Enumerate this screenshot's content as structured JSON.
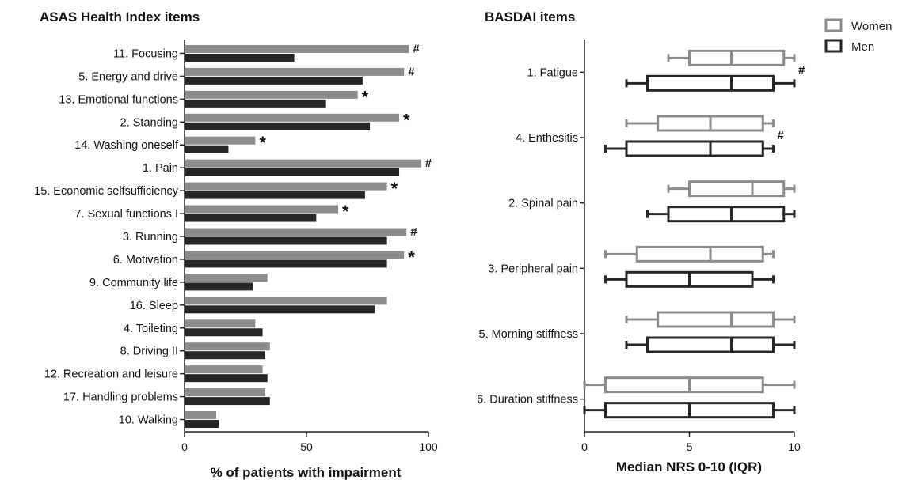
{
  "colors": {
    "women": "#8c8c8c",
    "men": "#262626",
    "axis": "#222222"
  },
  "chart_data": [
    {
      "type": "bar",
      "orientation": "horizontal",
      "title": "ASAS Health Index items",
      "xlabel": "% of patients with impairment",
      "xlim": [
        0,
        100
      ],
      "xticks": [
        "0",
        "50",
        "100"
      ],
      "categories": [
        "11. Focusing",
        "5. Energy and drive",
        "13. Emotional functions",
        "2. Standing",
        "14. Washing oneself",
        "1. Pain",
        "15. Economic selfsufficiency",
        "7. Sexual functions I",
        "3. Running",
        "6. Motivation",
        "9. Community life",
        "16. Sleep",
        "4. Toileting",
        "8. Driving II",
        "12. Recreation and leisure",
        "17. Handling problems",
        "10. Walking"
      ],
      "series": [
        {
          "name": "Women",
          "values": [
            92,
            90,
            71,
            88,
            29,
            97,
            83,
            63,
            91,
            90,
            34,
            83,
            29,
            35,
            32,
            33,
            13
          ]
        },
        {
          "name": "Men",
          "values": [
            45,
            73,
            58,
            76,
            18,
            88,
            74,
            54,
            83,
            83,
            28,
            78,
            32,
            33,
            34,
            35,
            14
          ]
        }
      ],
      "annotations": [
        "#",
        "#",
        "*",
        "*",
        "*",
        "#",
        "*",
        "*",
        "#",
        "*",
        "",
        "",
        "",
        "",
        "",
        "",
        ""
      ]
    },
    {
      "type": "boxplot",
      "orientation": "horizontal",
      "title": "BASDAI items",
      "xlabel": "Median NRS 0-10 (IQR)",
      "xlim": [
        0,
        10
      ],
      "xticks": [
        "0",
        "5",
        "10"
      ],
      "categories": [
        "1. Fatigue",
        "4. Enthesitis",
        "2. Spinal pain",
        "3. Peripheral pain",
        "5. Morning stiffness",
        "6. Duration stiffness"
      ],
      "legend": {
        "position": "top-right",
        "entries": [
          "Women",
          "Men"
        ]
      },
      "series": [
        {
          "name": "Women",
          "boxes": [
            {
              "min": 4,
              "q1": 5,
              "median": 7,
              "q3": 9.5,
              "max": 10
            },
            {
              "min": 2,
              "q1": 3.5,
              "median": 6,
              "q3": 8.5,
              "max": 9
            },
            {
              "min": 4,
              "q1": 5,
              "median": 8,
              "q3": 9.5,
              "max": 10
            },
            {
              "min": 1,
              "q1": 2.5,
              "median": 6,
              "q3": 8.5,
              "max": 9
            },
            {
              "min": 2,
              "q1": 3.5,
              "median": 7,
              "q3": 9,
              "max": 10
            },
            {
              "min": 0,
              "q1": 1,
              "median": 5,
              "q3": 8.5,
              "max": 10
            }
          ]
        },
        {
          "name": "Men",
          "boxes": [
            {
              "min": 2,
              "q1": 3,
              "median": 7,
              "q3": 9,
              "max": 10
            },
            {
              "min": 1,
              "q1": 2,
              "median": 6,
              "q3": 8.5,
              "max": 9
            },
            {
              "min": 3,
              "q1": 4,
              "median": 7,
              "q3": 9.5,
              "max": 10
            },
            {
              "min": 1,
              "q1": 2,
              "median": 5,
              "q3": 8,
              "max": 9
            },
            {
              "min": 2,
              "q1": 3,
              "median": 7,
              "q3": 9,
              "max": 10
            },
            {
              "min": 0,
              "q1": 1,
              "median": 5,
              "q3": 9,
              "max": 10
            }
          ]
        }
      ],
      "annotations": [
        "#",
        "#",
        "",
        "",
        "",
        ""
      ]
    }
  ]
}
